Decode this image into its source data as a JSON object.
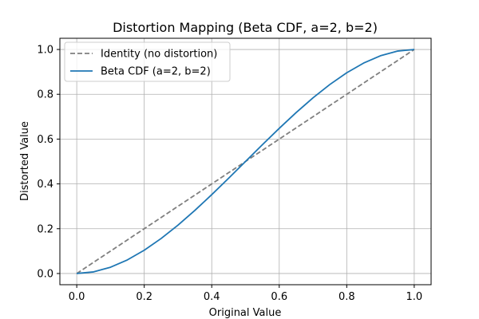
{
  "chart_data": {
    "type": "line",
    "title": "Distortion Mapping (Beta CDF, a=2, b=2)",
    "xlabel": "Original Value",
    "ylabel": "Distorted Value",
    "xlim": [
      -0.05,
      1.05
    ],
    "ylim": [
      -0.05,
      1.05
    ],
    "xticks": [
      "0.0",
      "0.2",
      "0.4",
      "0.6",
      "0.8",
      "1.0"
    ],
    "yticks": [
      "0.0",
      "0.2",
      "0.4",
      "0.6",
      "0.8",
      "1.0"
    ],
    "grid": true,
    "legend_position": "top-left",
    "x": [
      0.0,
      0.05,
      0.1,
      0.15,
      0.2,
      0.25,
      0.3,
      0.35,
      0.4,
      0.45,
      0.5,
      0.55,
      0.6,
      0.65,
      0.7,
      0.75,
      0.8,
      0.85,
      0.9,
      0.95,
      1.0
    ],
    "series": [
      {
        "name": "Identity (no distortion)",
        "color": "#7f7f7f",
        "dash": "dashed",
        "values": [
          0.0,
          0.05,
          0.1,
          0.15,
          0.2,
          0.25,
          0.3,
          0.35,
          0.4,
          0.45,
          0.5,
          0.55,
          0.6,
          0.65,
          0.7,
          0.75,
          0.8,
          0.85,
          0.9,
          0.95,
          1.0
        ]
      },
      {
        "name": "Beta CDF (a=2, b=2)",
        "color": "#1f77b4",
        "dash": "solid",
        "values": [
          0.0,
          0.00725,
          0.028,
          0.06075,
          0.104,
          0.15625,
          0.216,
          0.28175,
          0.352,
          0.42525,
          0.5,
          0.57475,
          0.648,
          0.71825,
          0.784,
          0.84375,
          0.896,
          0.93925,
          0.972,
          0.99275,
          1.0
        ]
      }
    ]
  }
}
